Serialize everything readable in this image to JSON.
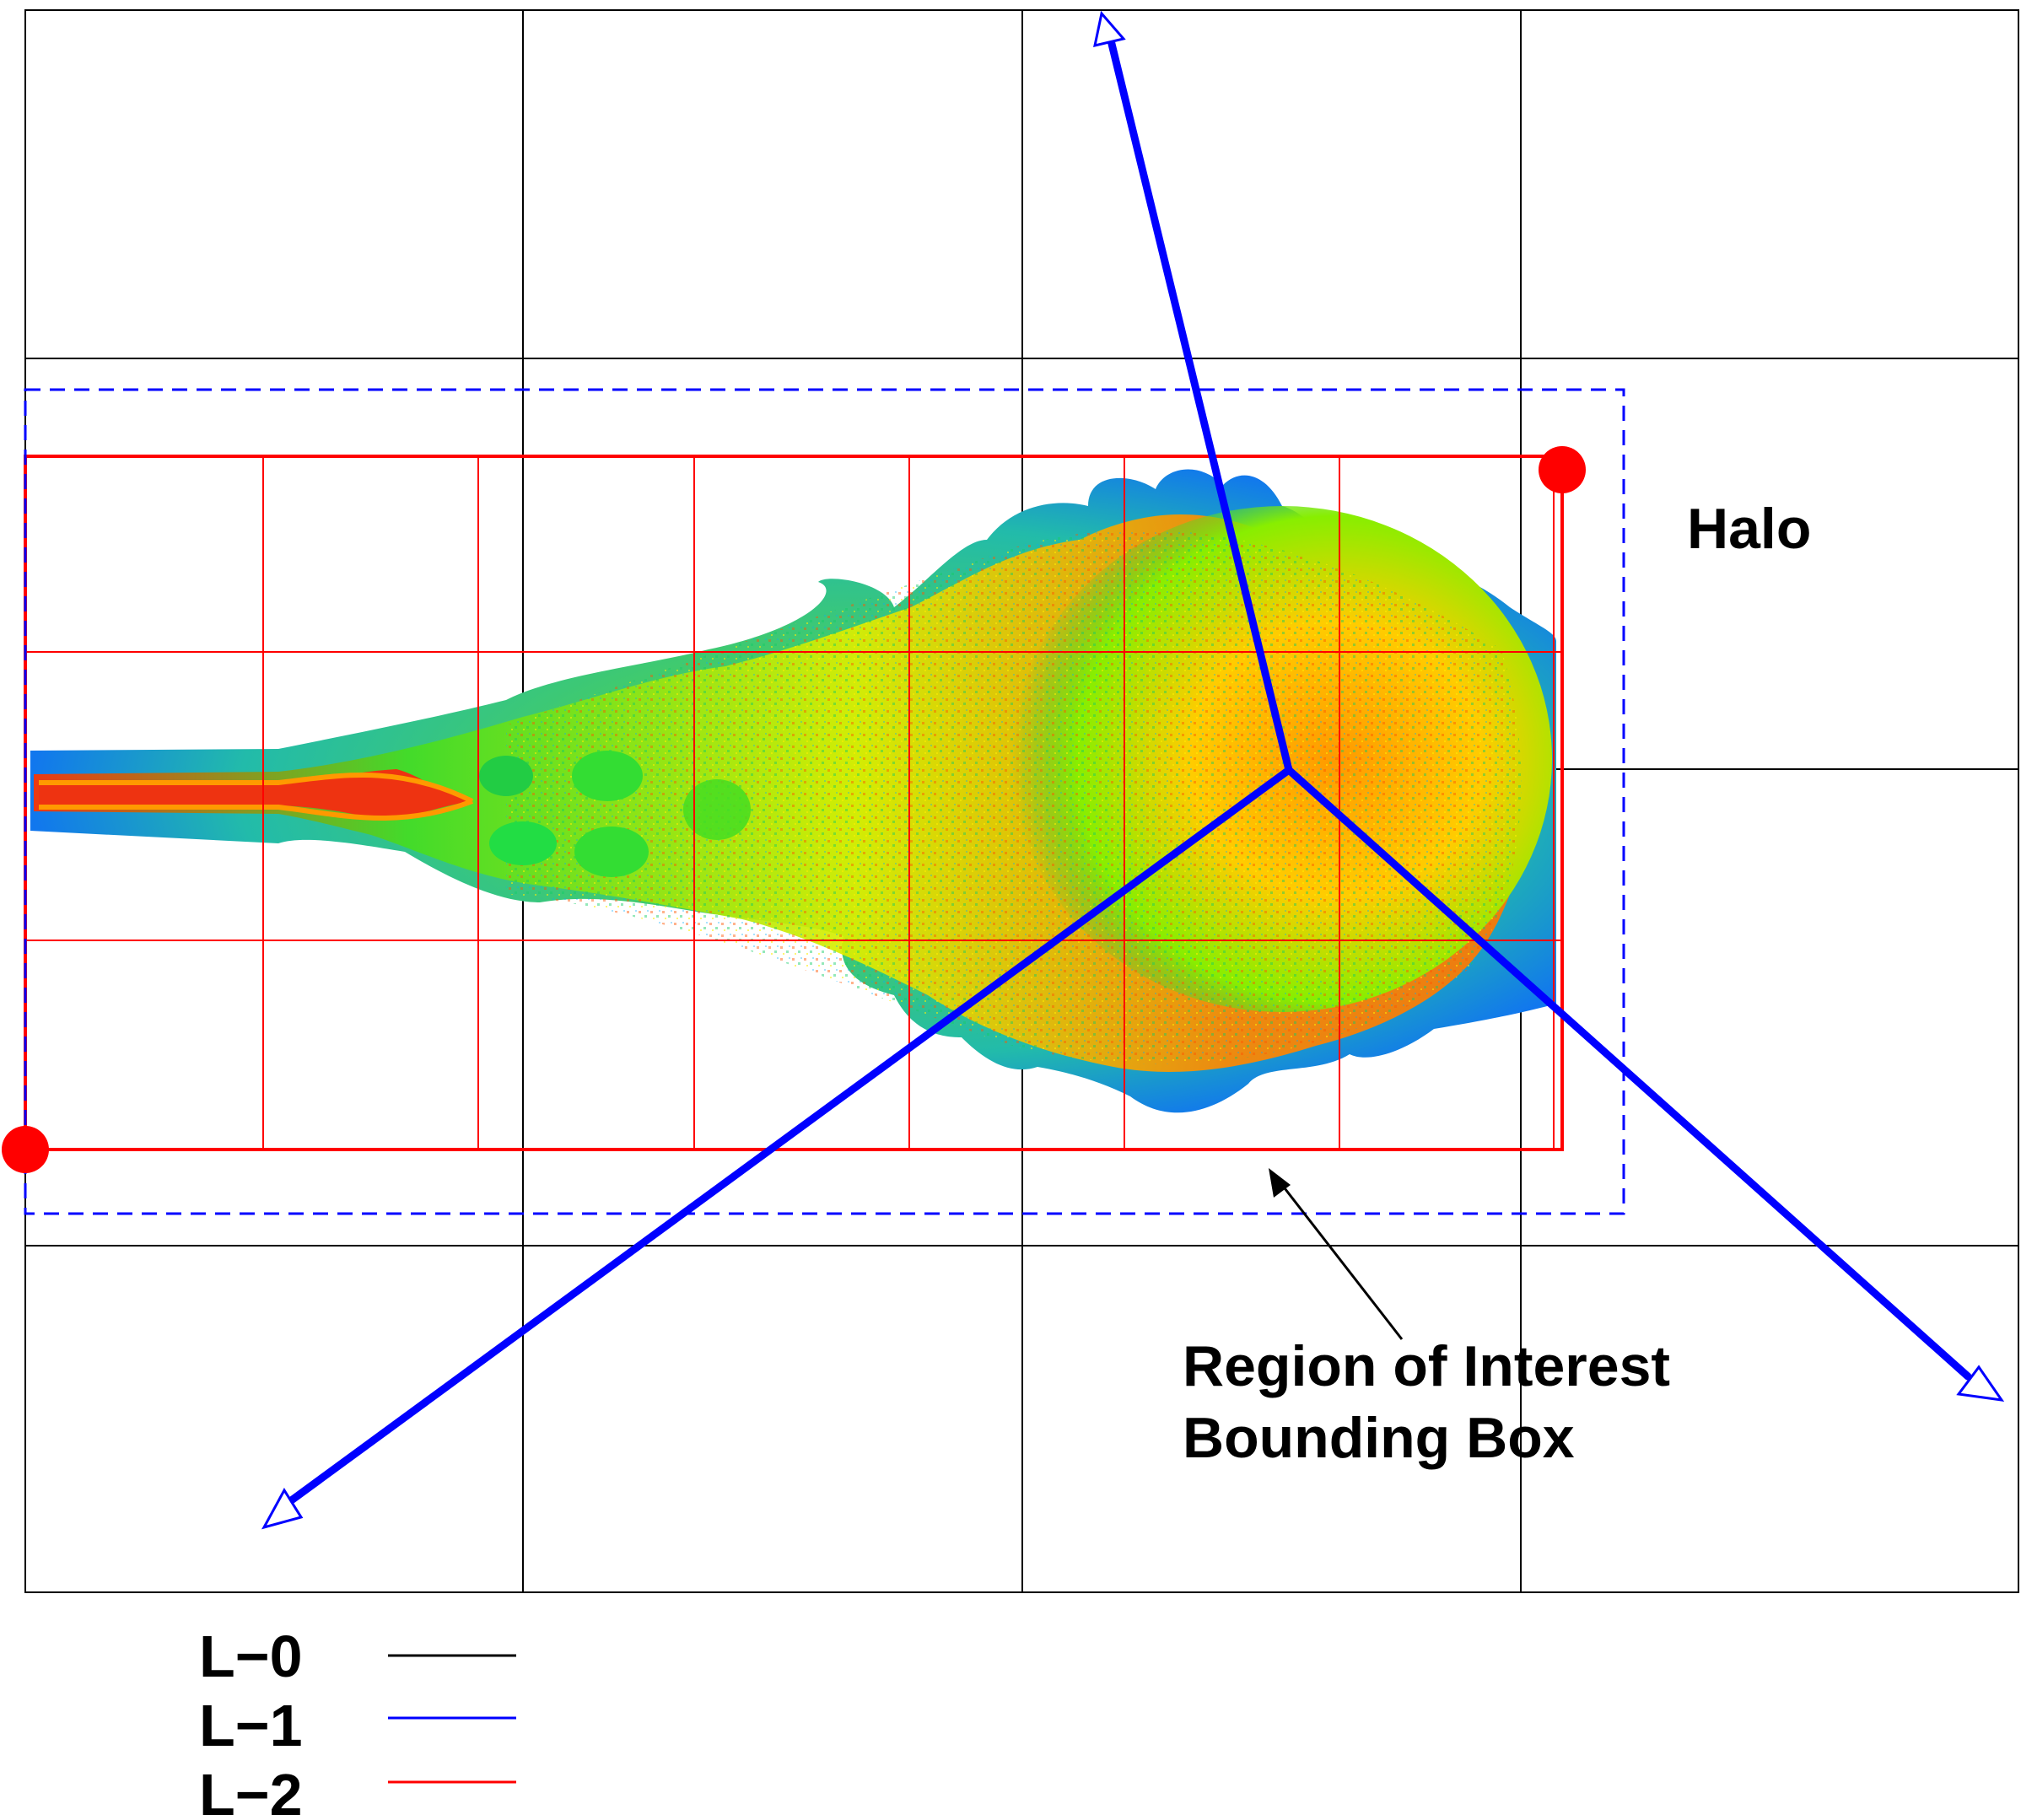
{
  "labels": {
    "halo": "Halo",
    "roi_line1": "Region of Interest",
    "roi_line2": "Bounding Box"
  },
  "legend": [
    {
      "label": "L−0",
      "color": "#000000"
    },
    {
      "label": "L−1",
      "color": "#0000ff"
    },
    {
      "label": "L−2",
      "color": "#ff0000"
    }
  ],
  "colors": {
    "level0": "#000000",
    "level1": "#0000ff",
    "level2": "#ff0000",
    "halo_box": "#0000ff",
    "markers": "#ff0000"
  }
}
